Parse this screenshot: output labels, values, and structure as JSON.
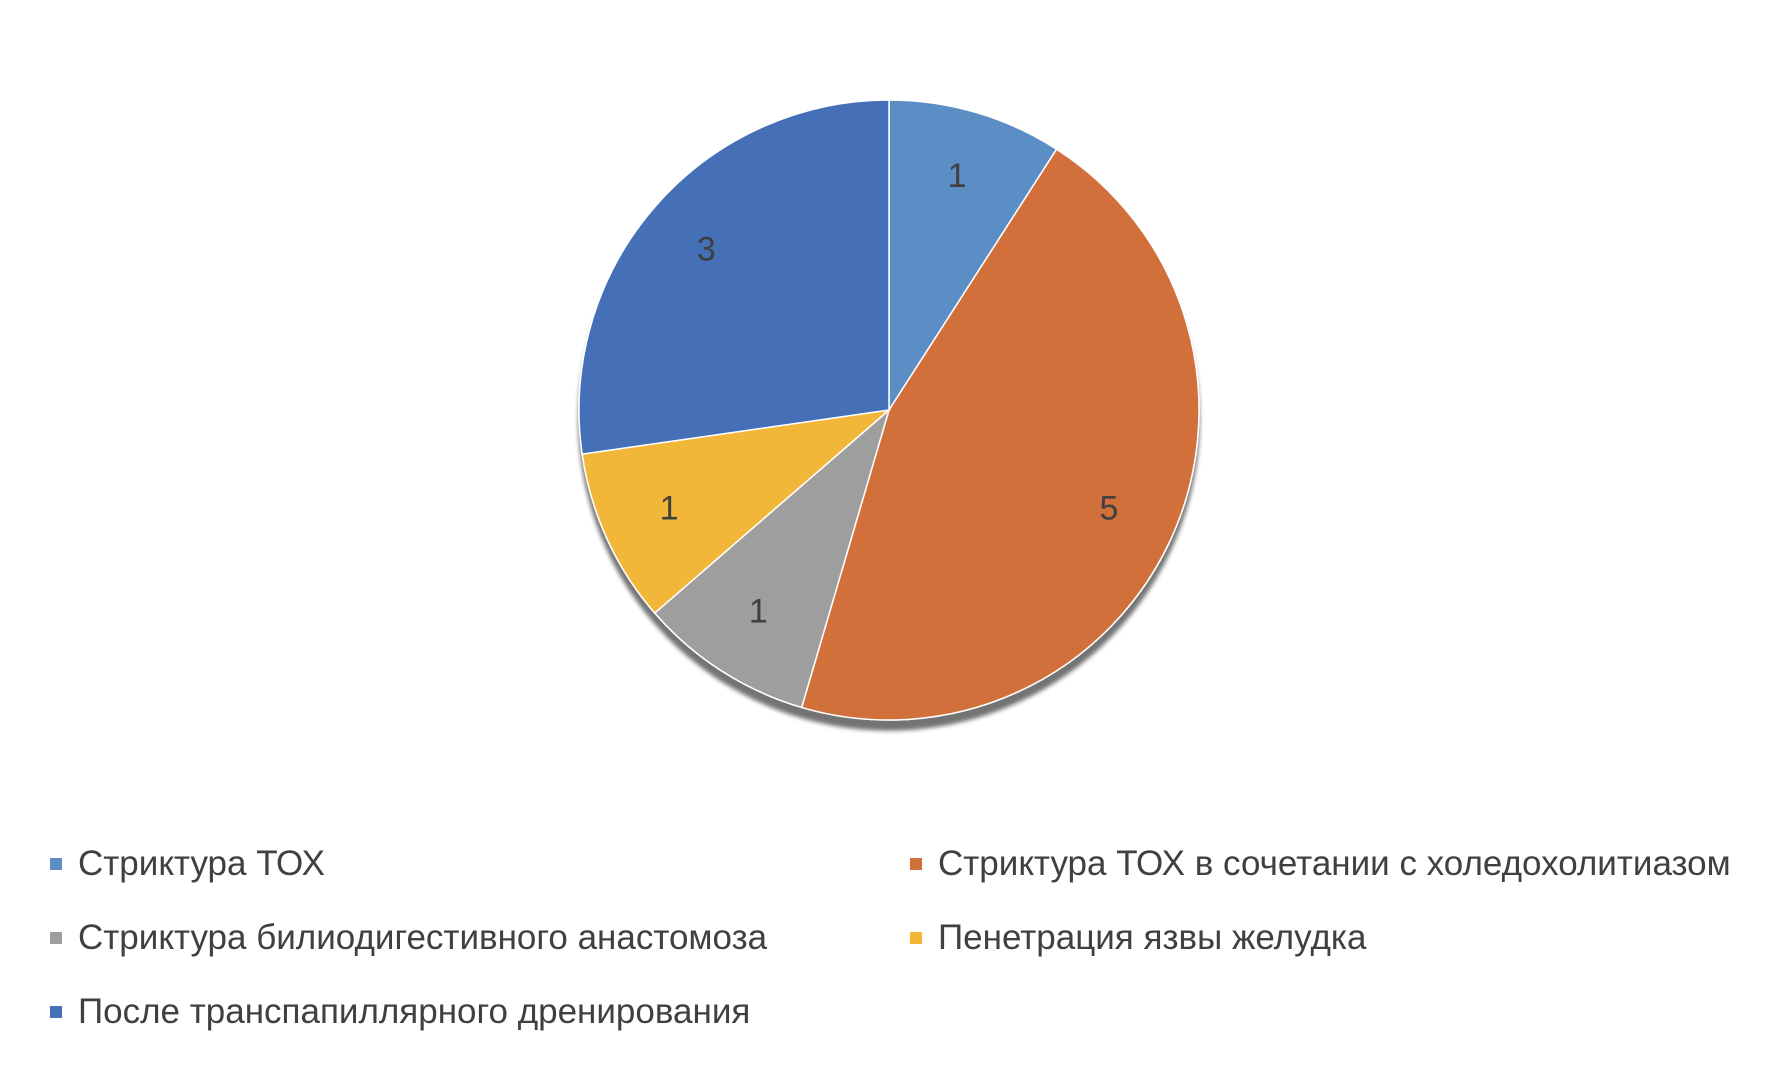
{
  "chart_data": {
    "type": "pie",
    "title": "",
    "categories": [
      "Стриктура ТОХ",
      "Стриктура ТОХ в сочетании с холедохолитиазом",
      "Стриктура билиодигестивного анастомоза",
      "Пенетрация язвы желудка",
      "После транспапиллярного дренирования"
    ],
    "values": [
      1,
      5,
      1,
      1,
      3
    ],
    "data_labels": [
      "1",
      "5",
      "1",
      "1",
      "3"
    ],
    "colors": [
      "#5B8EC6",
      "#D2703A",
      "#9E9E9E",
      "#F2B737",
      "#4470B8"
    ],
    "legend_position": "bottom",
    "start_angle": "12 o'clock",
    "direction": "clockwise"
  }
}
